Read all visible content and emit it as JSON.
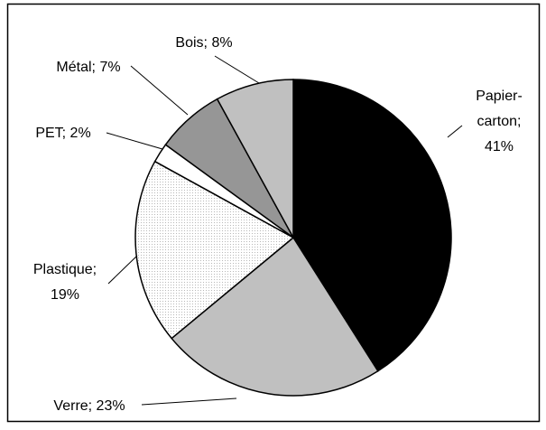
{
  "chart_data": {
    "type": "pie",
    "values": [
      41,
      23,
      19,
      2,
      7,
      8
    ],
    "value_labels": [
      "Papier-carton; 41%",
      "Verre; 23%",
      "Plastique; 19%",
      "PET; 2%",
      "Métal; 7%",
      "Bois; 8%"
    ],
    "colors": [
      "#000000",
      "#c0c0c0",
      "pattern-dots",
      "#ffffff",
      "#969696",
      "#c0c0c0"
    ]
  }
}
